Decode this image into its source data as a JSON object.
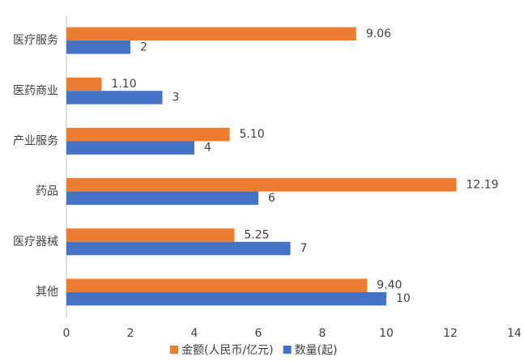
{
  "chart_data": {
    "type": "bar",
    "orientation": "horizontal",
    "categories": [
      "医疗服务",
      "医药商业",
      "产业服务",
      "药品",
      "医疗器械",
      "其他"
    ],
    "series": [
      {
        "name": "金额(人民币/亿元)",
        "color": "#ed7d31",
        "values": [
          9.06,
          1.1,
          5.1,
          12.19,
          5.25,
          9.4
        ],
        "value_labels": [
          "9.06",
          "1.10",
          "5.10",
          "12.19",
          "5.25",
          "9.40"
        ]
      },
      {
        "name": "数量(起)",
        "color": "#4472c4",
        "values": [
          2,
          3,
          4,
          6,
          7,
          10
        ]
      }
    ],
    "xlim": [
      0,
      14
    ],
    "xticks": [
      0,
      2,
      4,
      6,
      8,
      10,
      12,
      14
    ],
    "grid": false,
    "legend": "bottom"
  }
}
